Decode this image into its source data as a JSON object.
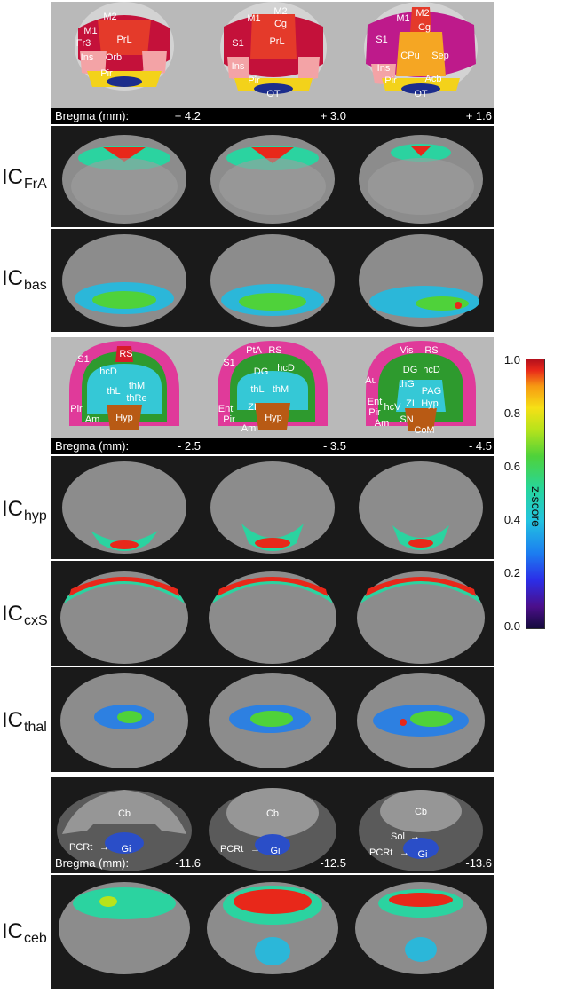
{
  "rows": [
    {
      "id": "atlas1",
      "labels": [
        "M1",
        "M2",
        "Fr3",
        "PrL",
        "Ins",
        "Orb",
        "Pir",
        "M1",
        "M2",
        "Cg",
        "S1",
        "PrL",
        "Ins",
        "Pir",
        "OT",
        "M1",
        "M2",
        "Cg",
        "S1",
        "CPu",
        "Sep",
        "Ins",
        "Pir",
        "Acb",
        "OT"
      ]
    },
    {
      "id": "bregma1",
      "prefix": "Bregma (mm):",
      "values": [
        "+ 4.2",
        "+ 3.0",
        "+ 1.6"
      ]
    },
    {
      "id": "ic_fra",
      "ic": "IC",
      "sub": "FrA"
    },
    {
      "id": "ic_bas",
      "ic": "IC",
      "sub": "bas"
    },
    {
      "id": "atlas2",
      "labels": [
        "S1",
        "RS",
        "hcD",
        "thM",
        "thL",
        "thRe",
        "Pir",
        "Am",
        "Hyp",
        "PtA",
        "RS",
        "S1",
        "DG",
        "hcD",
        "thM",
        "thL",
        "ZI",
        "Ent",
        "Pir",
        "Am",
        "Hyp",
        "Vis",
        "RS",
        "Au",
        "DG",
        "hcD",
        "thG",
        "PAG",
        "Ent",
        "hcV",
        "Pir",
        "ZI",
        "Hyp",
        "Am",
        "SN",
        "CoM"
      ]
    },
    {
      "id": "bregma2",
      "prefix": "Bregma (mm):",
      "values": [
        "- 2.5",
        "- 3.5",
        "- 4.5"
      ]
    },
    {
      "id": "ic_hyp",
      "ic": "IC",
      "sub": "hyp"
    },
    {
      "id": "ic_cxs",
      "ic": "IC",
      "sub": "cxS"
    },
    {
      "id": "ic_thal",
      "ic": "IC",
      "sub": "thal"
    },
    {
      "id": "atlas3",
      "labels": [
        "Cb",
        "PCRt",
        "Gi",
        "Cb",
        "PCRt",
        "Gi",
        "Cb",
        "Sol",
        "PCRt",
        "Gi"
      ]
    },
    {
      "id": "bregma3",
      "prefix": "Bregma (mm):",
      "values": [
        "-11.6",
        "-12.5",
        "-13.6"
      ]
    },
    {
      "id": "ic_ceb",
      "ic": "IC",
      "sub": "ceb"
    }
  ],
  "colorbar": {
    "title": "z-score",
    "ticks": [
      "1.0",
      "0.8",
      "0.6",
      "0.4",
      "0.2",
      "0.0"
    ],
    "colors": {
      "low": "#140a3c",
      "mid": "#27d69a",
      "high": "#b3101c"
    }
  },
  "icons": {
    "arrow": "right-arrow-icon"
  }
}
